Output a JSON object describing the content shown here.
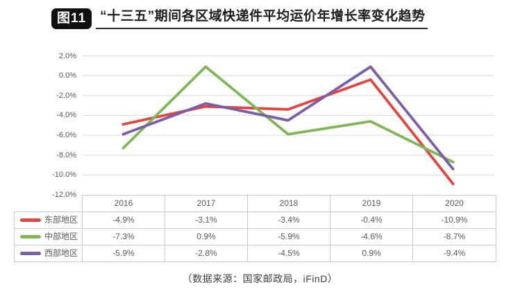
{
  "figure": {
    "badge": "图11",
    "title": "“十三五”期间各区域快递件平均运价年增长率变化趋势",
    "source_note": "（数据来源：国家邮政局，iFinD）"
  },
  "chart_data": {
    "type": "line",
    "title": "“十三五”期间各区域快递件平均运价年增长率变化趋势",
    "categories": [
      "2016",
      "2017",
      "2018",
      "2019",
      "2020"
    ],
    "series": [
      {
        "name": "东部地区",
        "color": "#e2453f",
        "values": [
          -4.9,
          -3.1,
          -3.4,
          -0.4,
          -10.9
        ]
      },
      {
        "name": "中部地区",
        "color": "#7fb757",
        "values": [
          -7.3,
          0.9,
          -5.9,
          -4.6,
          -8.7
        ]
      },
      {
        "name": "西部地区",
        "color": "#7a5ca8",
        "values": [
          -5.9,
          -2.8,
          -4.5,
          0.9,
          -9.4
        ]
      }
    ],
    "ylim": [
      -12,
      2
    ],
    "ytick_step": 2,
    "ytick_labels": [
      "2.0%",
      "0.0%",
      "-2.0%",
      "-4.0%",
      "-6.0%",
      "-8.0%",
      "-10.0%",
      "-12.0%"
    ],
    "value_suffix": "%",
    "grid": true,
    "legend_position": "data-table-left",
    "data_table_shown": true,
    "colors": {
      "gridline": "#d9d9d9",
      "table_border": "#c9c9c9",
      "axis_text": "#595959",
      "title_text": "#1c1c1c"
    }
  }
}
